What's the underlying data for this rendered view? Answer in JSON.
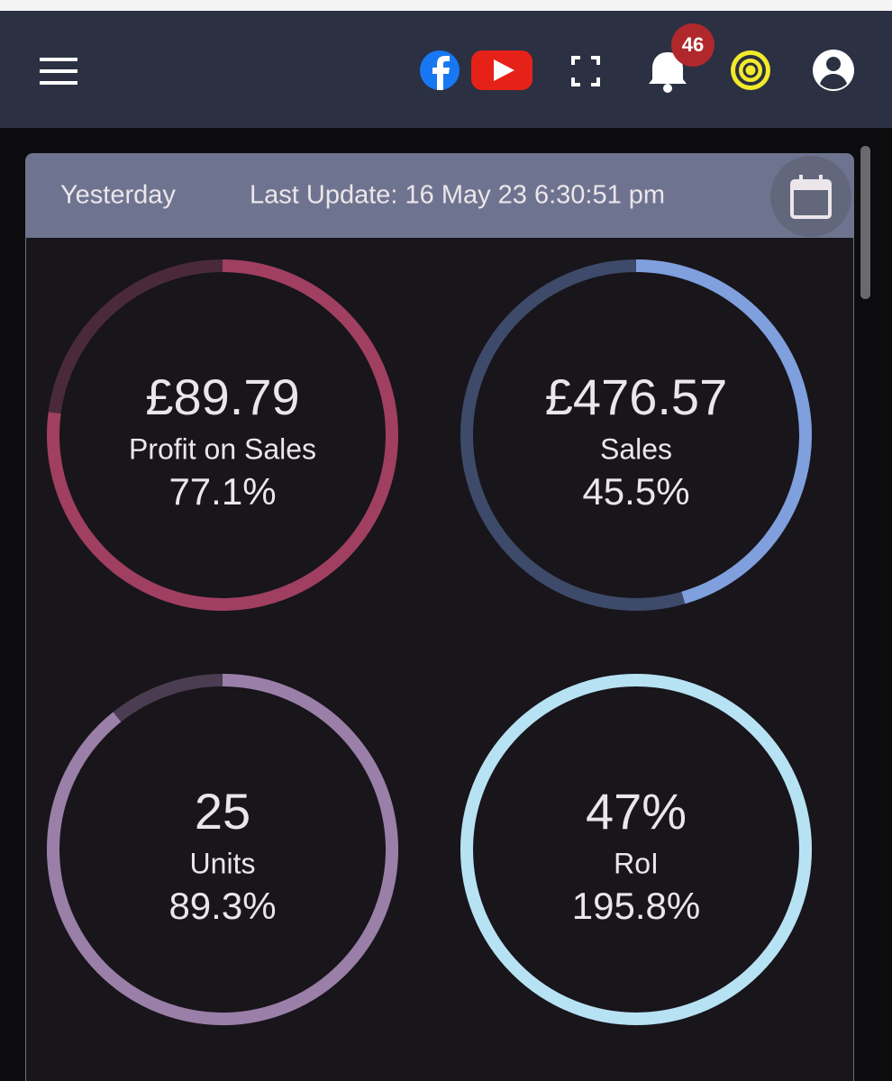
{
  "header": {
    "notification_count": "46"
  },
  "card": {
    "period": "Yesterday",
    "last_update": "Last Update: 16 May 23 6:30:51 pm"
  },
  "gauges": [
    {
      "value": "£89.79",
      "name": "Profit on Sales",
      "percent": 77.1,
      "percent_label": "77.1%",
      "color": "#a03f60",
      "track_color": "#4a2a3a"
    },
    {
      "value": "£476.57",
      "name": "Sales",
      "percent": 45.5,
      "percent_label": "45.5%",
      "color": "#7f9fdd",
      "track_color": "#3d4a6a"
    },
    {
      "value": "25",
      "name": "Units",
      "percent": 89.3,
      "percent_label": "89.3%",
      "color": "#9a7fa8",
      "track_color": "#4a3d52"
    },
    {
      "value": "47%",
      "name": "RoI",
      "percent": 195.8,
      "percent_label": "195.8%",
      "color": "#b7e2f3",
      "track_color": "#3c5560"
    }
  ]
}
